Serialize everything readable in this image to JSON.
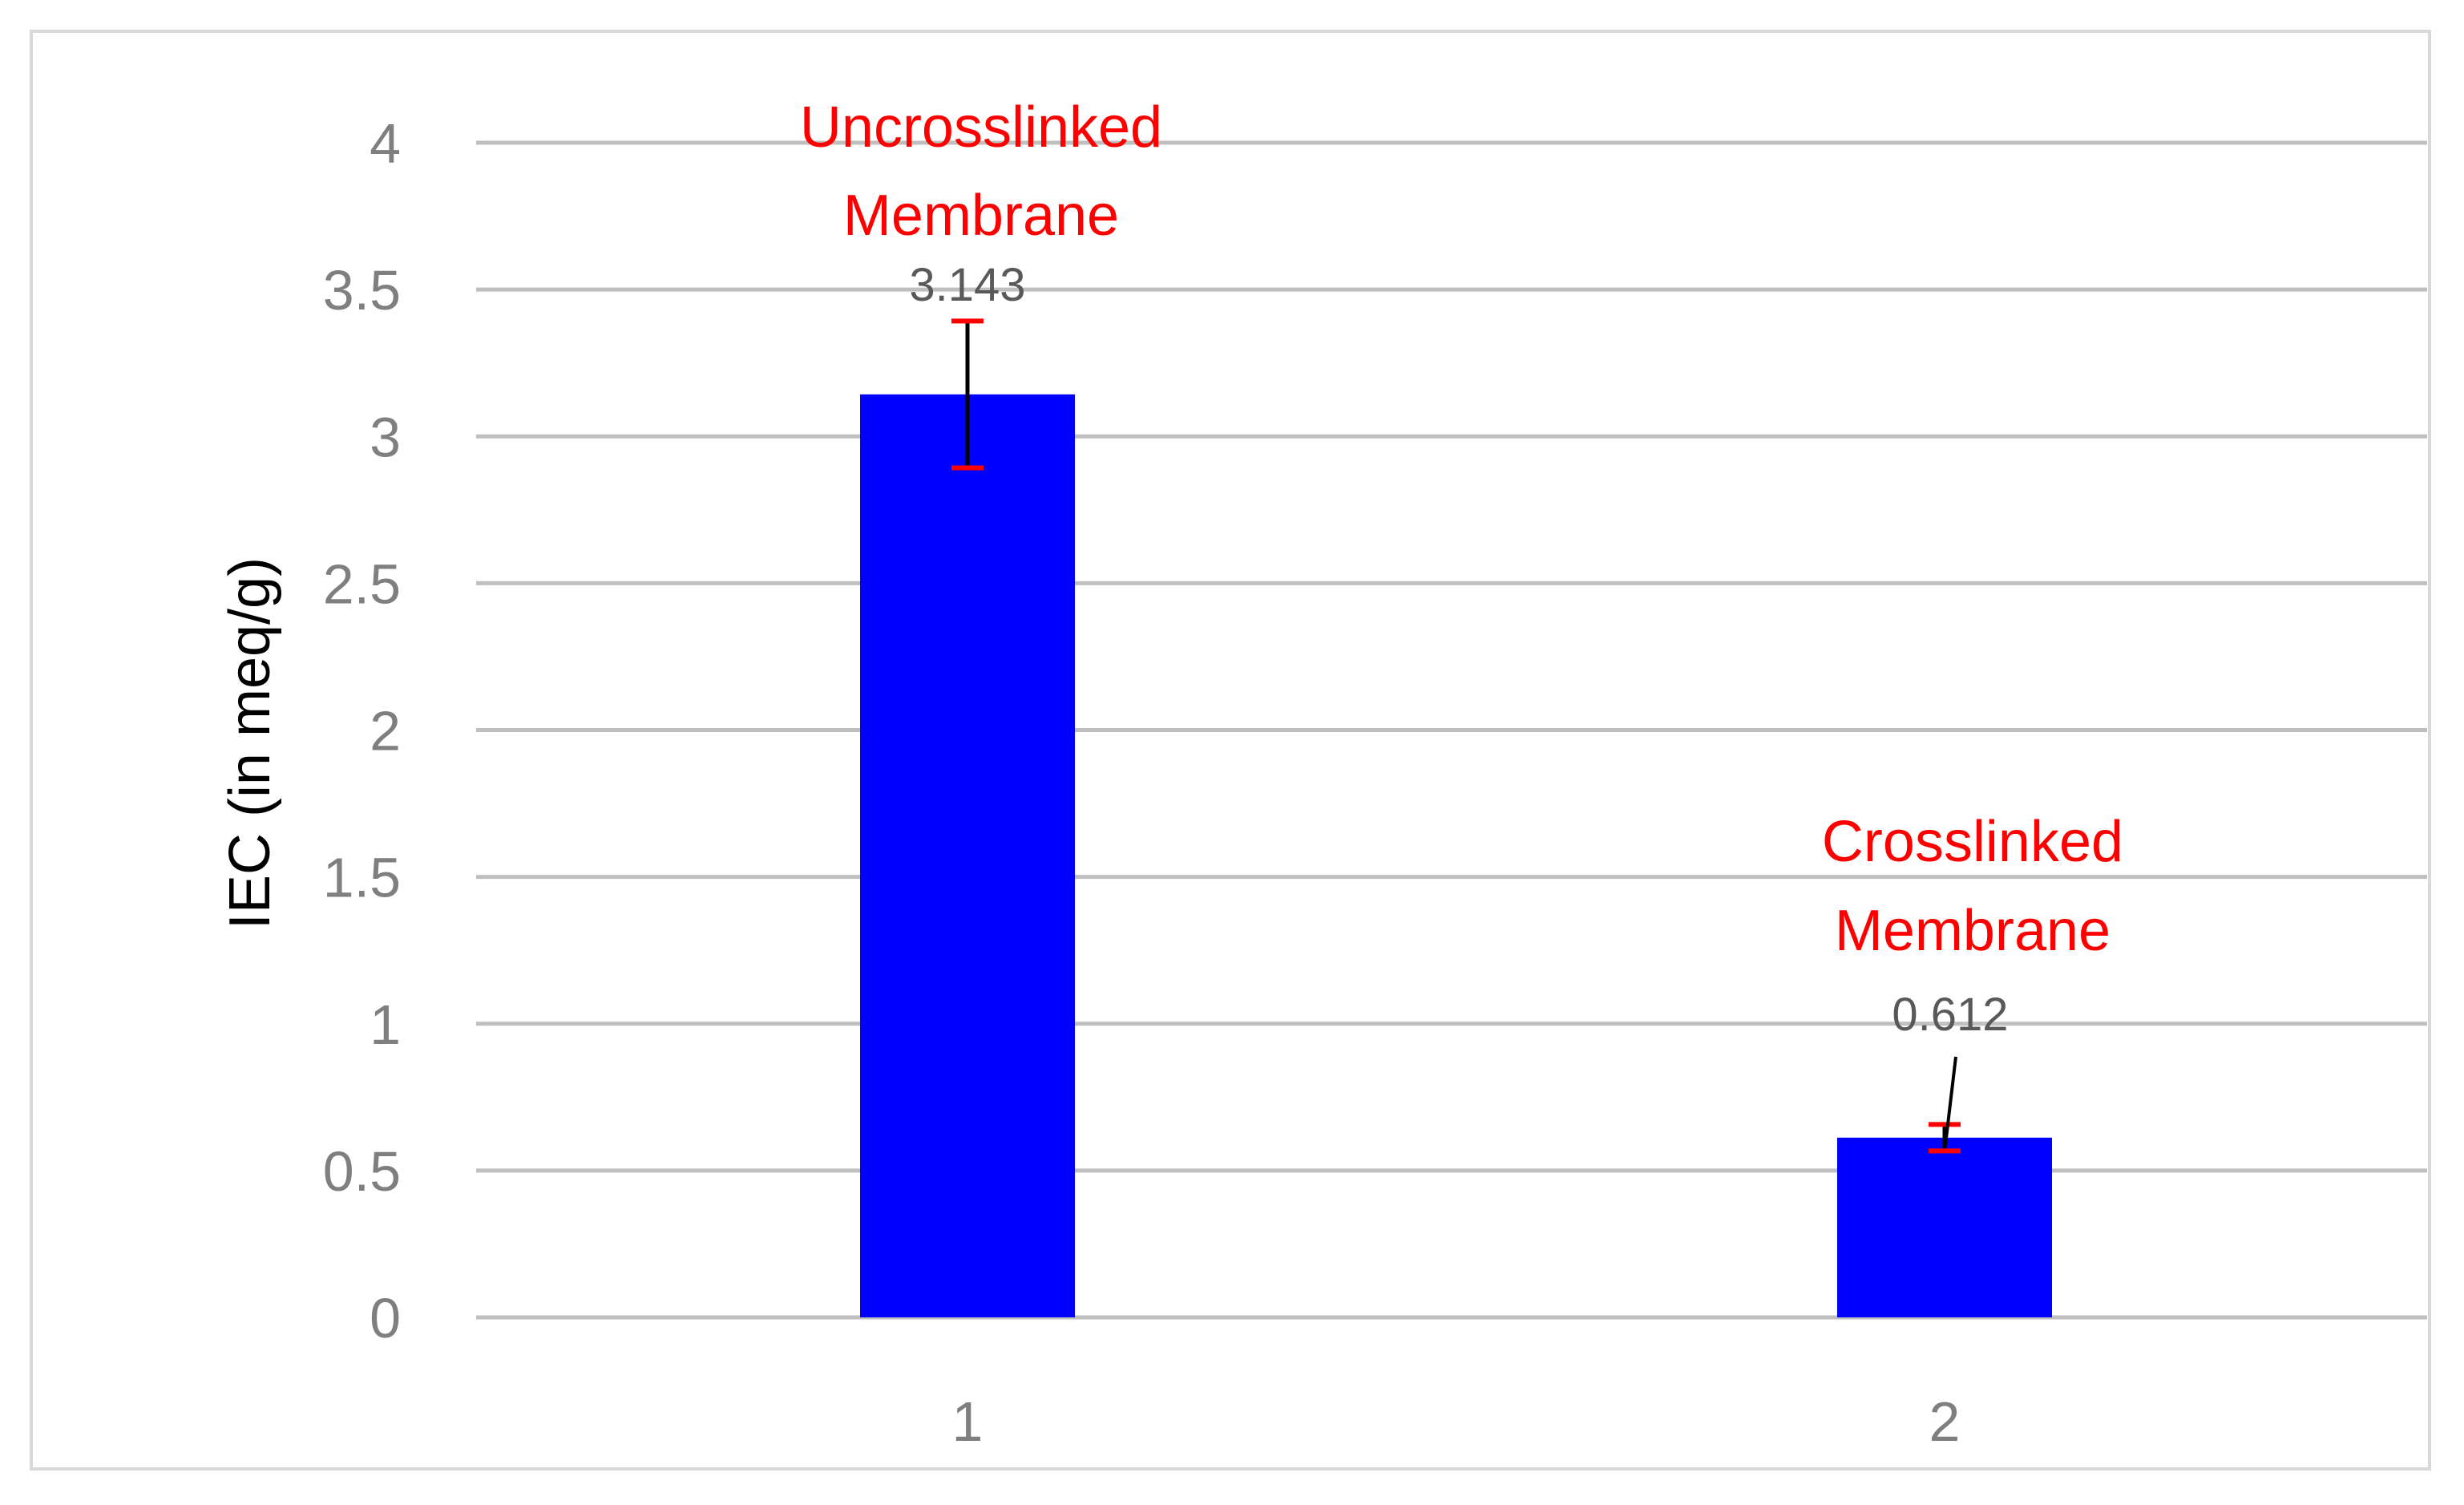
{
  "chart_data": {
    "type": "bar",
    "title": "",
    "xlabel": "",
    "ylabel": "IEC (in meq/g)",
    "categories": [
      "1",
      "2"
    ],
    "values": [
      3.143,
      0.612
    ],
    "data_labels": [
      "3.143",
      "0.612"
    ],
    "error": [
      0.25,
      0.045
    ],
    "annotations": [
      {
        "lines": [
          "Uncrosslinked",
          "Membrane"
        ],
        "category": "1"
      },
      {
        "lines": [
          "Crosslinked",
          "Membrane"
        ],
        "category": "2"
      }
    ],
    "ylim": [
      0,
      4
    ],
    "yticks": [
      "0",
      "0.5",
      "1",
      "1.5",
      "2",
      "2.5",
      "3",
      "3.5",
      "4"
    ],
    "grid": true,
    "legend": "none",
    "colors": {
      "bar": "#0000ff",
      "error_bar": "#ff0000",
      "annotation": "#ff0000",
      "grid": "#bfbfbf",
      "tick_text": "#7f7f7f",
      "data_label": "#595959"
    }
  }
}
